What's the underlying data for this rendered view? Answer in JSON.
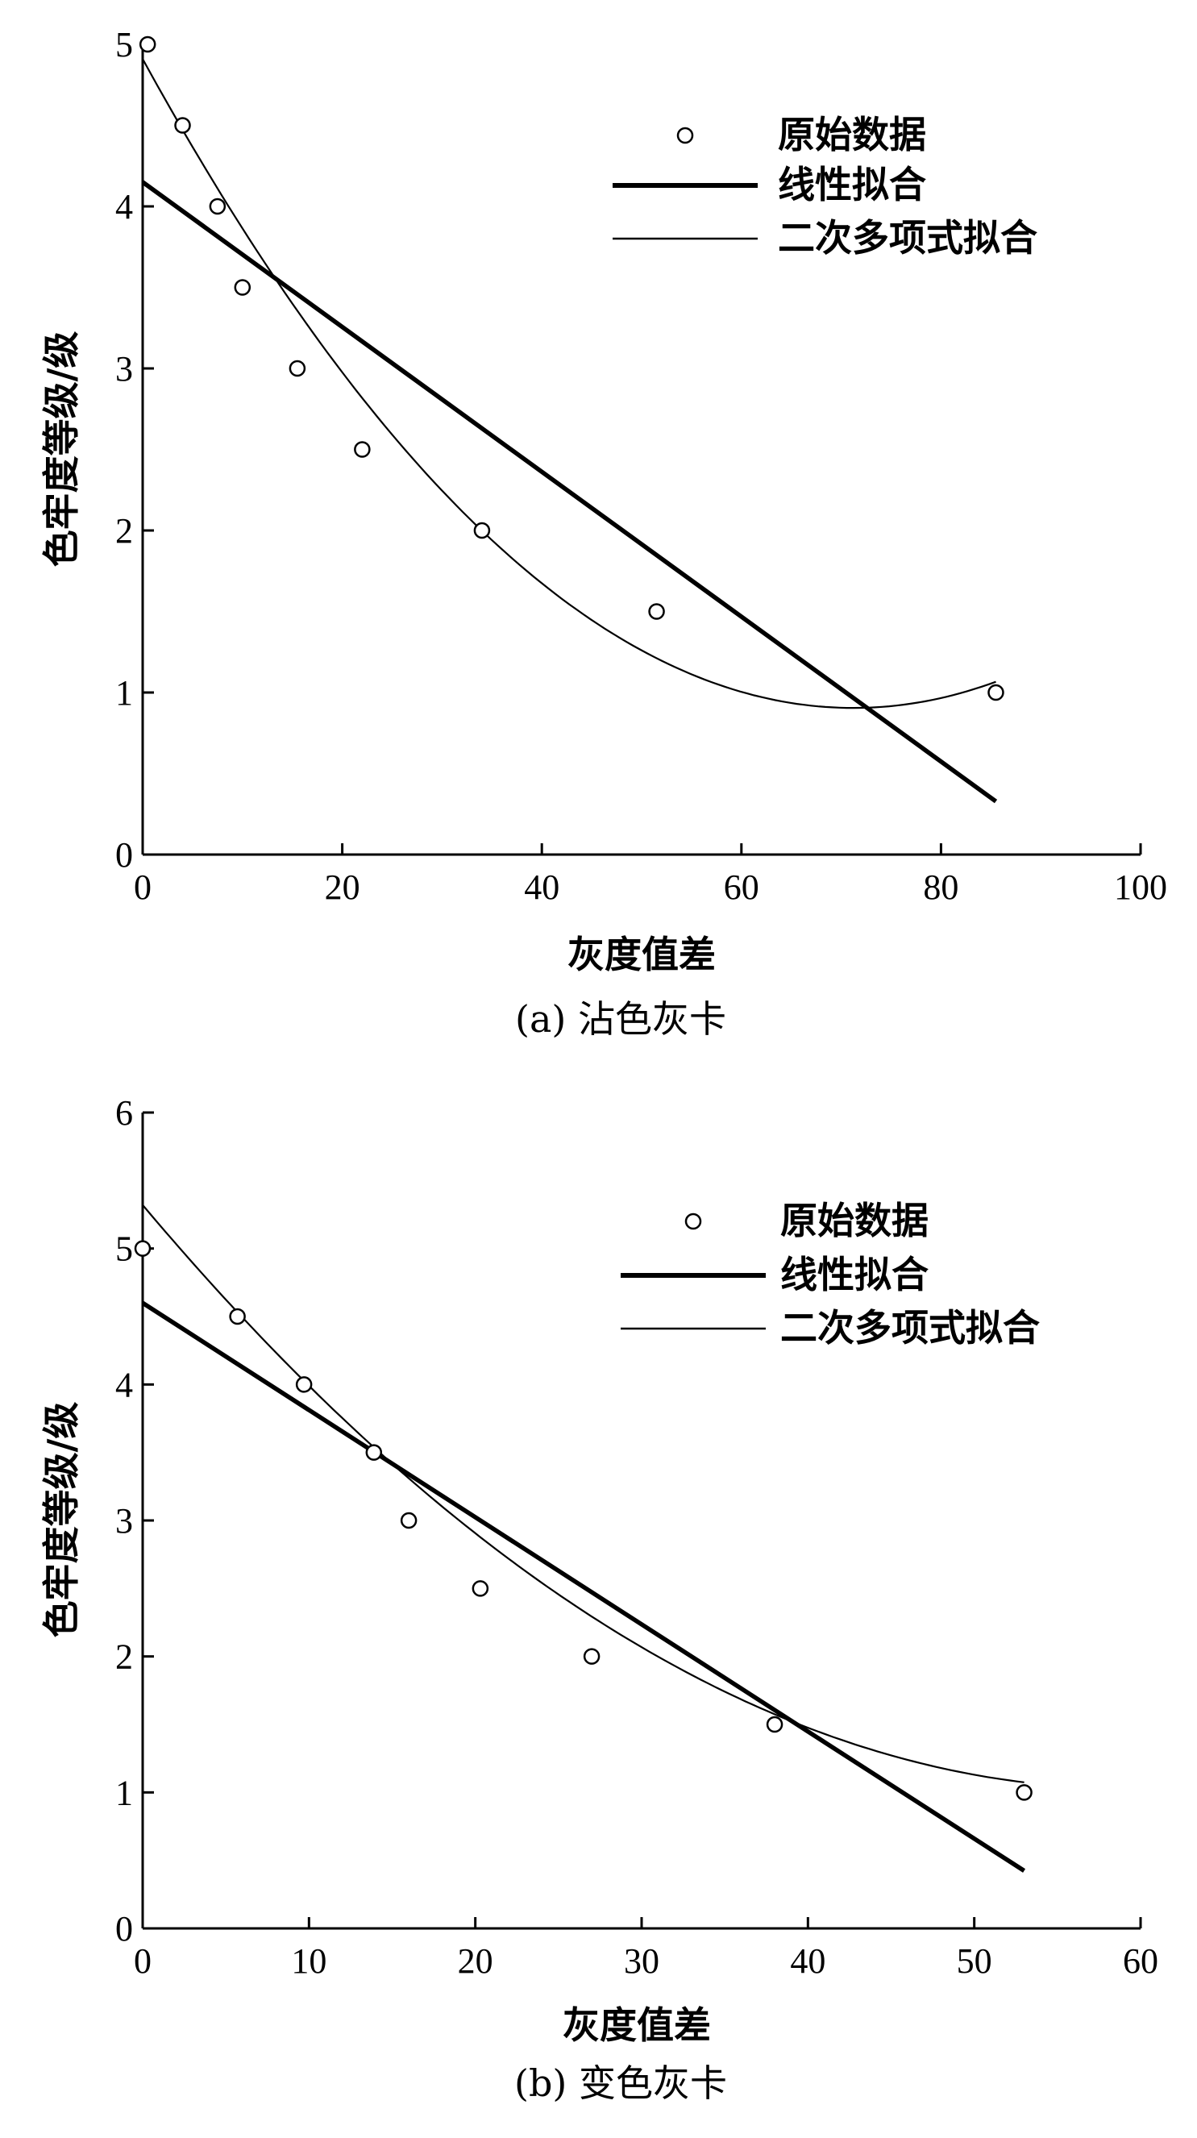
{
  "chart_data": [
    {
      "type": "scatter",
      "caption": "(a) 沾色灰卡",
      "xlabel": "灰度值差",
      "ylabel": "色牢度等级/级",
      "xlim": [
        0,
        100
      ],
      "ylim": [
        0,
        5
      ],
      "xticks": [
        "0",
        "20",
        "40",
        "60",
        "80",
        "100"
      ],
      "yticks": [
        "0",
        "1",
        "2",
        "3",
        "4",
        "5"
      ],
      "legend": {
        "placement": "top-right",
        "entries": [
          "原始数据",
          "线性拟合",
          "二次多项式拟合"
        ]
      },
      "series": [
        {
          "name": "原始数据",
          "kind": "points",
          "x": [
            0.5,
            4,
            7.5,
            10,
            15.5,
            22,
            34,
            51.5,
            85.5
          ],
          "y": [
            5,
            4.5,
            4,
            3.5,
            3,
            2.5,
            2,
            1.5,
            1
          ]
        },
        {
          "name": "线性拟合",
          "kind": "line",
          "x_range": [
            0,
            85.5
          ],
          "slope": -0.0447,
          "intercept": 4.15
        },
        {
          "name": "二次多项式拟合",
          "kind": "curve",
          "x_range": [
            0,
            85.5
          ],
          "coefficients": {
            "a": 0.00079,
            "b": -0.1125,
            "c": 4.91
          }
        }
      ]
    },
    {
      "type": "scatter",
      "caption": "(b) 变色灰卡",
      "xlabel": "灰度值差",
      "ylabel": "色牢度等级/级",
      "xlim": [
        0,
        60
      ],
      "ylim": [
        0,
        6
      ],
      "xticks": [
        "0",
        "10",
        "20",
        "30",
        "40",
        "50",
        "60"
      ],
      "yticks": [
        "0",
        "1",
        "2",
        "3",
        "4",
        "5",
        "6"
      ],
      "legend": {
        "placement": "top-right",
        "entries": [
          "原始数据",
          "线性拟合",
          "二次多项式拟合"
        ]
      },
      "series": [
        {
          "name": "原始数据",
          "kind": "points",
          "x": [
            0,
            5.7,
            9.7,
            13.9,
            16,
            20.3,
            27,
            38,
            53
          ],
          "y": [
            5,
            4.5,
            4,
            3.5,
            3,
            2.5,
            2,
            1.5,
            1
          ]
        },
        {
          "name": "线性拟合",
          "kind": "line",
          "x_range": [
            0,
            53
          ],
          "slope": -0.0788,
          "intercept": 4.6
        },
        {
          "name": "二次多项式拟合",
          "kind": "curve",
          "x_range": [
            0,
            53
          ],
          "coefficients": {
            "a": 0.00123,
            "b": -0.1453,
            "c": 5.32
          }
        }
      ]
    }
  ]
}
